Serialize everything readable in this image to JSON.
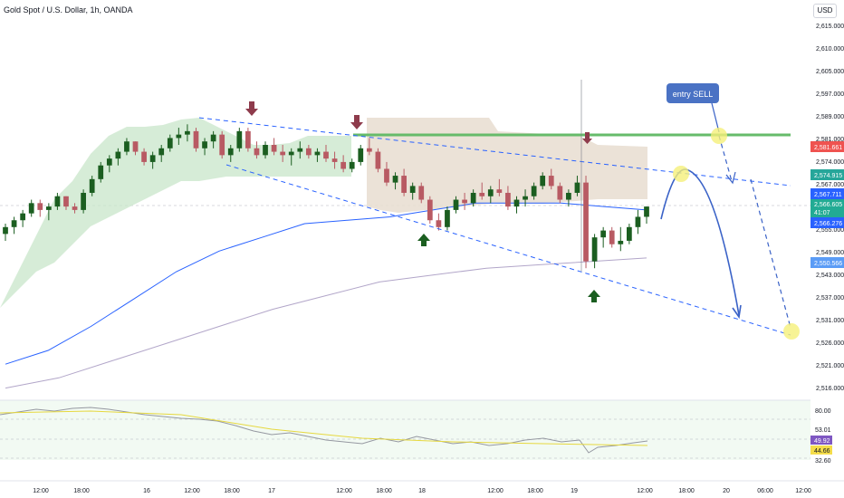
{
  "header": {
    "title": "Gold Spot / U.S. Dollar, 1h, OANDA",
    "currency": "USD"
  },
  "price_axis": {
    "ticks": [
      "2,615.000",
      "2,610.000",
      "2,605.000",
      "2,597.000",
      "2,589.000",
      "2,581.000",
      "2,574.000",
      "2,567.000",
      "2,560.000",
      "2,555.000",
      "2,549.000",
      "2,543.000",
      "2,537.000",
      "2,531.000",
      "2,526.000",
      "2,521.000",
      "2,516.000"
    ],
    "labels": [
      {
        "text": "2,581.661",
        "color": "#ef5350"
      },
      {
        "text": "2,574.915",
        "color": "#26a69a"
      },
      {
        "text": "2,567.711",
        "color": "#2962ff"
      },
      {
        "text": "2,566.605",
        "color": "#22ab94"
      },
      {
        "text": "41:07",
        "color": "#22ab94"
      },
      {
        "text": "2,566.276",
        "color": "#2962ff"
      },
      {
        "text": "2,550.566",
        "color": "#5b9cf6"
      }
    ]
  },
  "rsi_axis": {
    "ticks": [
      "80.00",
      "53.01",
      "32.60"
    ],
    "labels": [
      {
        "text": "49.92",
        "color": "#7e57c2"
      },
      {
        "text": "44.66",
        "color": "#f5dd4a"
      }
    ]
  },
  "time_axis": [
    "12:00",
    "18:00",
    "16",
    "12:00",
    "18:00",
    "17",
    "12:00",
    "18:00",
    "18",
    "12:00",
    "18:00",
    "19",
    "12:00",
    "18:00",
    "20",
    "06:00",
    "12:00"
  ],
  "annotations": {
    "entry": "entry SELL"
  },
  "chart_data": {
    "type": "candlestick",
    "title": "Gold Spot / U.S. Dollar, 1h, OANDA",
    "ylim": [
      2511,
      2622
    ],
    "current_price": 2566.605,
    "candles": [
      [
        2559,
        2562,
        2557,
        2561
      ],
      [
        2561,
        2564,
        2559,
        2563
      ],
      [
        2563,
        2566,
        2561,
        2565
      ],
      [
        2565,
        2569,
        2564,
        2568
      ],
      [
        2568,
        2569,
        2564,
        2566
      ],
      [
        2566,
        2568,
        2563,
        2567
      ],
      [
        2567,
        2571,
        2566,
        2570
      ],
      [
        2570,
        2570,
        2566,
        2567
      ],
      [
        2567,
        2568,
        2565,
        2566
      ],
      [
        2566,
        2572,
        2565,
        2571
      ],
      [
        2571,
        2576,
        2570,
        2575
      ],
      [
        2575,
        2580,
        2574,
        2579
      ],
      [
        2579,
        2582,
        2577,
        2581
      ],
      [
        2581,
        2584,
        2579,
        2583
      ],
      [
        2583,
        2587,
        2582,
        2586
      ],
      [
        2586,
        2586,
        2582,
        2583
      ],
      [
        2583,
        2584,
        2579,
        2580
      ],
      [
        2580,
        2583,
        2578,
        2582
      ],
      [
        2582,
        2585,
        2580,
        2584
      ],
      [
        2584,
        2588,
        2583,
        2587
      ],
      [
        2587,
        2590,
        2585,
        2588
      ],
      [
        2588,
        2591,
        2586,
        2589
      ],
      [
        2589,
        2590,
        2583,
        2584
      ],
      [
        2584,
        2587,
        2582,
        2586
      ],
      [
        2586,
        2589,
        2584,
        2588
      ],
      [
        2588,
        2589,
        2581,
        2582
      ],
      [
        2582,
        2585,
        2580,
        2584
      ],
      [
        2584,
        2590,
        2583,
        2589
      ],
      [
        2589,
        2590,
        2583,
        2584
      ],
      [
        2584,
        2586,
        2581,
        2582
      ],
      [
        2582,
        2586,
        2581,
        2585
      ],
      [
        2585,
        2587,
        2582,
        2583
      ],
      [
        2583,
        2585,
        2580,
        2582
      ],
      [
        2582,
        2584,
        2579,
        2583
      ],
      [
        2583,
        2586,
        2581,
        2584
      ],
      [
        2584,
        2585,
        2581,
        2582
      ],
      [
        2582,
        2584,
        2580,
        2583
      ],
      [
        2583,
        2585,
        2580,
        2581
      ],
      [
        2581,
        2583,
        2578,
        2580
      ],
      [
        2580,
        2582,
        2577,
        2578
      ],
      [
        2578,
        2581,
        2577,
        2580
      ],
      [
        2580,
        2585,
        2579,
        2584
      ],
      [
        2584,
        2587,
        2582,
        2583
      ],
      [
        2583,
        2584,
        2577,
        2578
      ],
      [
        2578,
        2580,
        2573,
        2574
      ],
      [
        2574,
        2577,
        2572,
        2576
      ],
      [
        2576,
        2578,
        2570,
        2571
      ],
      [
        2571,
        2574,
        2569,
        2573
      ],
      [
        2573,
        2574,
        2568,
        2569
      ],
      [
        2569,
        2570,
        2562,
        2563
      ],
      [
        2563,
        2565,
        2560,
        2561
      ],
      [
        2561,
        2567,
        2560,
        2566
      ],
      [
        2566,
        2570,
        2565,
        2569
      ],
      [
        2569,
        2571,
        2566,
        2568
      ],
      [
        2568,
        2572,
        2567,
        2571
      ],
      [
        2571,
        2574,
        2569,
        2570
      ],
      [
        2570,
        2573,
        2568,
        2572
      ],
      [
        2572,
        2575,
        2570,
        2571
      ],
      [
        2571,
        2573,
        2566,
        2567
      ],
      [
        2567,
        2570,
        2565,
        2569
      ],
      [
        2569,
        2572,
        2567,
        2570
      ],
      [
        2570,
        2574,
        2569,
        2573
      ],
      [
        2573,
        2577,
        2572,
        2576
      ],
      [
        2576,
        2578,
        2572,
        2573
      ],
      [
        2573,
        2574,
        2568,
        2569
      ],
      [
        2569,
        2572,
        2567,
        2571
      ],
      [
        2571,
        2576,
        2570,
        2574
      ],
      [
        2574,
        2576,
        2549,
        2551
      ],
      [
        2551,
        2559,
        2549,
        2558
      ],
      [
        2558,
        2561,
        2555,
        2560
      ],
      [
        2560,
        2561,
        2555,
        2556
      ],
      [
        2556,
        2561,
        2554,
        2557
      ],
      [
        2557,
        2562,
        2556,
        2561
      ],
      [
        2561,
        2566,
        2559,
        2564
      ],
      [
        2564,
        2567,
        2562,
        2567
      ]
    ],
    "moving_averages": [
      {
        "color": "#2962ff",
        "values": [
          2521,
          2525,
          2532,
          2540,
          2548,
          2554,
          2558,
          2562,
          2563,
          2564,
          2566,
          2568,
          2568,
          2568,
          2567,
          2566
        ]
      },
      {
        "color": "#b2a6c9",
        "values": [
          2514,
          2517,
          2522,
          2527,
          2532,
          2537,
          2541,
          2545,
          2547,
          2549,
          2550,
          2551,
          2552
        ]
      }
    ]
  }
}
